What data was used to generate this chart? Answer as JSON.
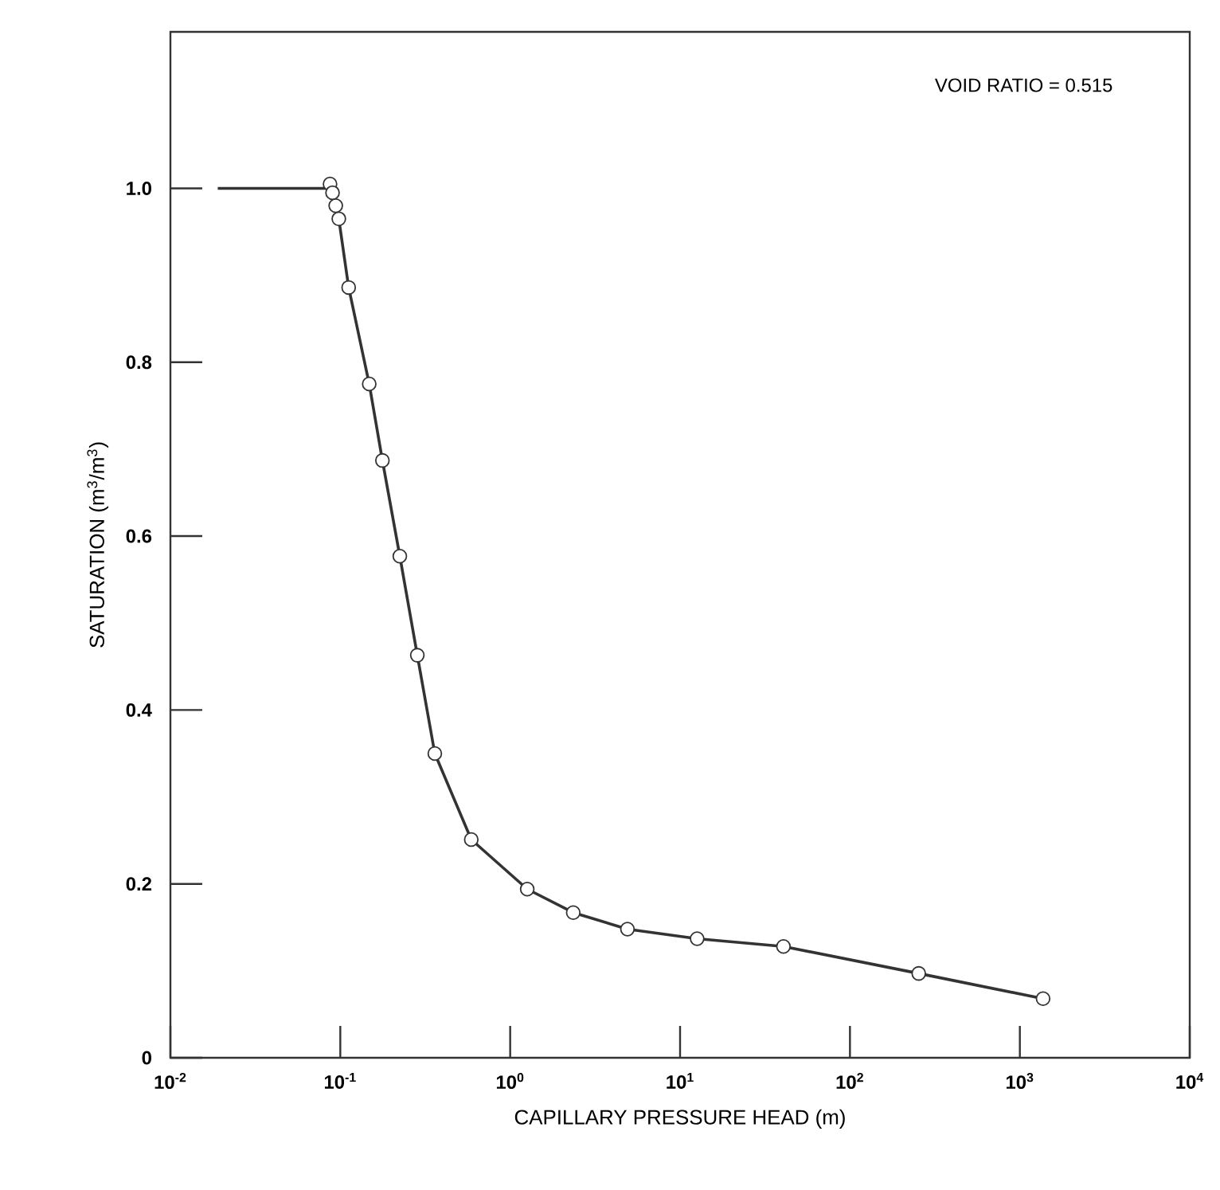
{
  "chart_data": {
    "type": "line",
    "xlabel": "CAPILLARY PRESSURE HEAD (m)",
    "ylabel": "SATURATION (m$^{3}$/m$^{3}$)",
    "annotations": [
      "VOID RATIO = 0.515"
    ],
    "log": "x",
    "grid": false,
    "legend": false,
    "marker": "circle",
    "line_style": "solid",
    "xlim": [
      0.01,
      10000
    ],
    "ylim": [
      0,
      1.18
    ],
    "xticks": [
      {
        "value": 0.01,
        "label": "10$^{-2}$"
      },
      {
        "value": 0.1,
        "label": "10$^{-1}$"
      },
      {
        "value": 1,
        "label": "10$^{0}$"
      },
      {
        "value": 10,
        "label": "10$^{1}$"
      },
      {
        "value": 100,
        "label": "10$^{2}$"
      },
      {
        "value": 1000,
        "label": "10$^{3}$"
      },
      {
        "value": 10000,
        "label": "10$^{4}$"
      }
    ],
    "yticks": [
      0,
      0.2,
      0.4,
      0.6,
      0.8,
      {
        "value": 1,
        "label": "1.0"
      }
    ],
    "series": [
      {
        "color": "#333333",
        "marker": "none",
        "x": [
          0.019,
          0.087
        ],
        "values": [
          1.0,
          1.0
        ]
      },
      {
        "color": "#333333",
        "x": [
          0.087,
          0.09,
          0.094,
          0.098,
          0.112,
          0.148,
          0.177,
          0.224,
          0.284,
          0.36,
          0.59,
          1.26,
          2.35,
          4.9,
          12.6,
          40.6,
          254,
          1370
        ],
        "values": [
          1.005,
          0.995,
          0.98,
          0.965,
          0.886,
          0.775,
          0.687,
          0.577,
          0.463,
          0.35,
          0.251,
          0.194,
          0.167,
          0.148,
          0.137,
          0.128,
          0.097,
          0.068
        ]
      }
    ]
  }
}
